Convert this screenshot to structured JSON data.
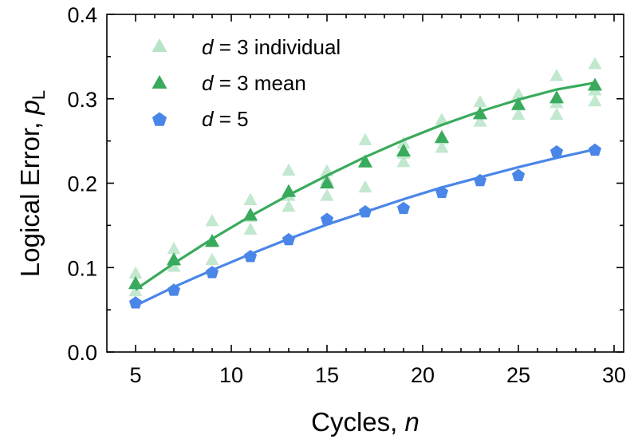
{
  "chart_data": {
    "type": "scatter",
    "title": "",
    "xlabel": "Cycles, ",
    "xlabel_italic": "n",
    "ylabel": "Logical Error, ",
    "ylabel_italic": "p",
    "ylabel_subscript": "L",
    "xlim": [
      3.5,
      30.5
    ],
    "ylim": [
      0.0,
      0.4
    ],
    "xticks": [
      5,
      10,
      15,
      20,
      25,
      30
    ],
    "yticks": [
      0.0,
      0.1,
      0.2,
      0.3,
      0.4
    ],
    "ytick_labels": [
      "0.0",
      "0.1",
      "0.2",
      "0.3",
      "0.4"
    ],
    "grid": false,
    "legend_position": "top-left",
    "colors": {
      "d3_individual": "#b7e4c7",
      "d3_mean": "#3aaa5c",
      "d5": "#4a86e8"
    },
    "series": [
      {
        "legend_italic": "d",
        "legend_rest": " = 3 individual",
        "marker": "triangle-up",
        "x": [
          5,
          5,
          5,
          7,
          7,
          7,
          9,
          9,
          9,
          11,
          11,
          11,
          13,
          13,
          13,
          15,
          15,
          15,
          17,
          17,
          17,
          19,
          19,
          19,
          21,
          21,
          21,
          23,
          23,
          23,
          25,
          25,
          25,
          27,
          27,
          27,
          29,
          29,
          29
        ],
        "y": [
          0.093,
          0.08,
          0.072,
          0.122,
          0.11,
          0.101,
          0.155,
          0.13,
          0.109,
          0.18,
          0.16,
          0.145,
          0.215,
          0.185,
          0.172,
          0.214,
          0.204,
          0.185,
          0.251,
          0.226,
          0.195,
          0.247,
          0.235,
          0.225,
          0.275,
          0.252,
          0.242,
          0.296,
          0.282,
          0.273,
          0.305,
          0.292,
          0.281,
          0.327,
          0.295,
          0.281,
          0.341,
          0.31,
          0.297
        ]
      },
      {
        "legend_italic": "d",
        "legend_rest": " = 3 mean",
        "marker": "triangle-up",
        "x": [
          5,
          7,
          9,
          11,
          13,
          15,
          17,
          19,
          21,
          23,
          25,
          27,
          29
        ],
        "y": [
          0.081,
          0.109,
          0.131,
          0.162,
          0.19,
          0.2,
          0.225,
          0.238,
          0.254,
          0.282,
          0.293,
          0.301,
          0.316
        ],
        "fit_y": [
          0.074,
          0.105,
          0.134,
          0.161,
          0.186,
          0.209,
          0.231,
          0.251,
          0.269,
          0.285,
          0.299,
          0.311,
          0.319
        ]
      },
      {
        "legend_italic": "d",
        "legend_rest": " = 5",
        "marker": "pentagon",
        "x": [
          5,
          7,
          9,
          11,
          13,
          15,
          17,
          19,
          21,
          23,
          25,
          27,
          29
        ],
        "y": [
          0.058,
          0.073,
          0.094,
          0.113,
          0.133,
          0.157,
          0.166,
          0.17,
          0.189,
          0.203,
          0.209,
          0.237,
          0.239
        ],
        "fit_y": [
          0.055,
          0.077,
          0.097,
          0.116,
          0.134,
          0.151,
          0.166,
          0.181,
          0.195,
          0.207,
          0.219,
          0.23,
          0.24
        ]
      }
    ]
  }
}
